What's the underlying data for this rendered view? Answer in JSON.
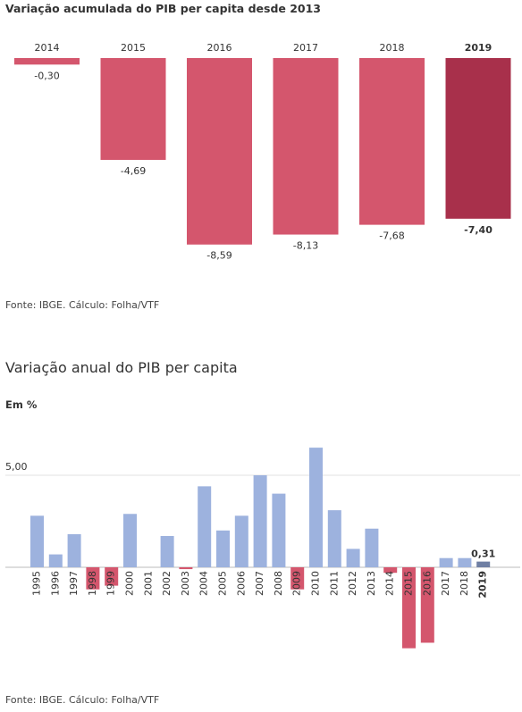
{
  "chart_data": [
    {
      "type": "bar",
      "title": "Variação acumulada do PIB per capita desde 2013",
      "categories": [
        "2014",
        "2015",
        "2016",
        "2017",
        "2018",
        "2019"
      ],
      "values": [
        -0.3,
        -4.69,
        -8.59,
        -8.13,
        -7.68,
        -7.4
      ],
      "value_labels": [
        "-0,30",
        "-4,69",
        "-8,59",
        "-8,13",
        "-7,68",
        "-7,40"
      ],
      "highlight": "2019",
      "ylim": [
        -9,
        0
      ],
      "colors": {
        "bar": "#d4566d",
        "highlight": "#a8304b"
      },
      "source": "Fonte: IBGE. Cálculo: Folha/VTF"
    },
    {
      "type": "bar",
      "title": "Variação anual do PIB per capita",
      "ylabel": "Em %",
      "ytick_label": "5,00",
      "ytick_value": 5,
      "categories": [
        "1995",
        "1996",
        "1997",
        "1998",
        "1999",
        "2000",
        "2001",
        "2002",
        "2003",
        "2004",
        "2005",
        "2006",
        "2007",
        "2008",
        "2009",
        "2010",
        "2011",
        "2012",
        "2013",
        "2014",
        "2015",
        "2016",
        "2017",
        "2018",
        "2019"
      ],
      "values": [
        2.8,
        0.7,
        1.8,
        -1.2,
        -1.0,
        2.9,
        0.0,
        1.7,
        -0.1,
        4.4,
        2.0,
        2.8,
        5.0,
        4.0,
        -1.2,
        6.5,
        3.1,
        1.0,
        2.1,
        -0.3,
        -4.4,
        -4.1,
        0.5,
        0.5,
        0.31
      ],
      "highlight": "2019",
      "highlight_label": "0,31",
      "ylim": [
        -5,
        7
      ],
      "colors": {
        "positive": "#9db2de",
        "negative": "#d4566d",
        "highlight": "#6f7fa3"
      },
      "source": "Fonte: IBGE. Cálculo: Folha/VTF"
    }
  ]
}
